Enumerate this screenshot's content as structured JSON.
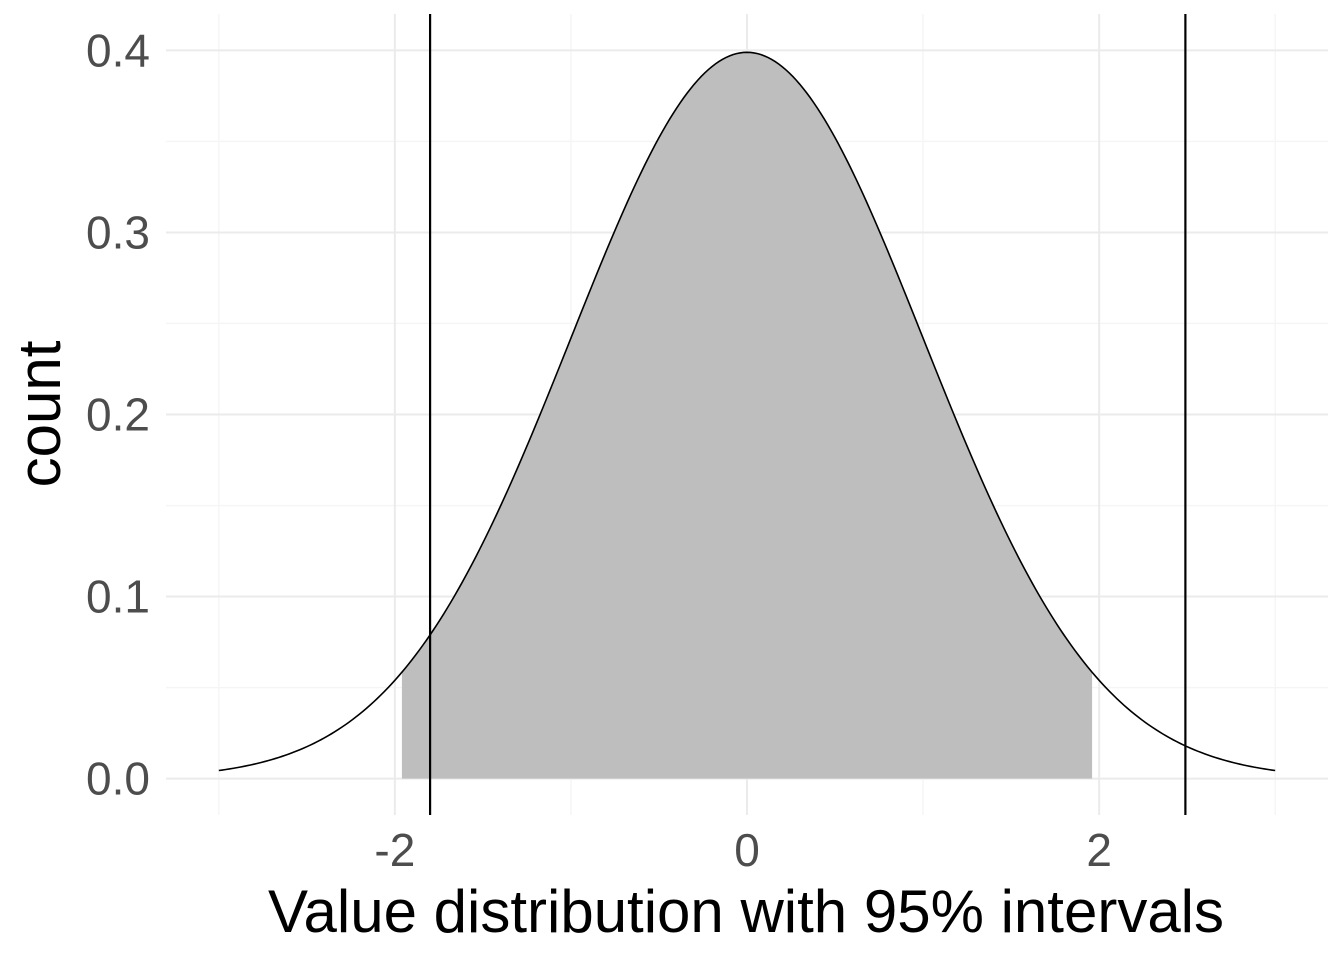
{
  "chart_data": {
    "type": "area",
    "title": "",
    "xlabel": "Value distribution with 95% intervals",
    "ylabel": "count",
    "xlim": [
      -3.3,
      3.3
    ],
    "ylim": [
      -0.02,
      0.42
    ],
    "x_ticks": [
      -2,
      0,
      2
    ],
    "x_tick_labels": [
      "-2",
      "0",
      "2"
    ],
    "x_minor_grid": [
      -3,
      -1,
      1,
      3
    ],
    "y_ticks": [
      0.0,
      0.1,
      0.2,
      0.3,
      0.4
    ],
    "y_tick_labels": [
      "0.0",
      "0.1",
      "0.2",
      "0.3",
      "0.4"
    ],
    "y_minor_grid": [
      0.05,
      0.15,
      0.25,
      0.35
    ],
    "grid": true,
    "density_curve": {
      "distribution": "standard normal",
      "x_range": [
        -3,
        3
      ],
      "peak": 0.399
    },
    "shaded_region": {
      "from": -1.96,
      "to": 1.96,
      "color": "#bebebe"
    },
    "vertical_lines": [
      -1.8,
      2.49
    ],
    "colors": {
      "shade": "#bebebe",
      "curve": "#000000",
      "grid_major": "#ebebeb",
      "grid_minor": "#f5f5f5",
      "tick_text": "#4d4d4d"
    }
  }
}
